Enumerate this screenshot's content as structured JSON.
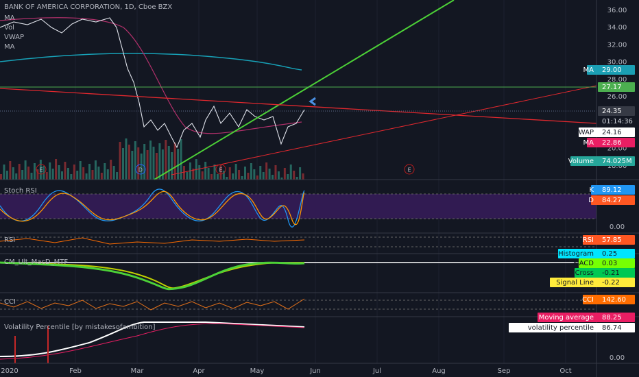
{
  "header": {
    "title": "BANK OF AMERICA CORPORATION, 1D, Cboe BZX",
    "indicators": [
      "MA",
      "Vol",
      "VWAP",
      "MA"
    ]
  },
  "price_axis": {
    "ticks": [
      "36.00",
      "34.00",
      "32.00",
      "30.00",
      "28.00",
      "26.00",
      "24.00",
      "22.00",
      "20.00",
      "18.00"
    ]
  },
  "price_badges": [
    {
      "label": "MA",
      "value": "29.00"
    },
    {
      "value": "27.17"
    },
    {
      "value": "24.35"
    },
    {
      "value": "01:14:36"
    },
    {
      "label": "VWAP",
      "value": "24.16"
    },
    {
      "label": "MA",
      "value": "22.86"
    },
    {
      "label": "Volume",
      "value": "74.025M"
    }
  ],
  "events": [
    "E",
    "D",
    "E",
    "E"
  ],
  "panels": [
    {
      "title": "Stoch RSI",
      "axis": [
        "0.00"
      ],
      "badges": [
        {
          "label": "K",
          "value": "89.12"
        },
        {
          "label": "D",
          "value": "84.27"
        }
      ]
    },
    {
      "title": "RSI",
      "badges": [
        {
          "label": "RSI",
          "value": "57.85"
        }
      ]
    },
    {
      "title": "CM_Ult_MacD_MTF",
      "badges": [
        {
          "label": "Histogram",
          "value": "0.25"
        },
        {
          "label": "MACD",
          "value": "0.03"
        },
        {
          "label": "Cross",
          "value": "-0.21"
        },
        {
          "label": "Signal Line",
          "value": "-0.22"
        }
      ]
    },
    {
      "title": "CCI",
      "badges": [
        {
          "label": "CCI",
          "value": "142.60"
        }
      ]
    },
    {
      "title": "Volatility Percentile [by mistakesofambition]",
      "axis": [
        "0.00"
      ],
      "badges": [
        {
          "label": "Moving average",
          "value": "88.25"
        },
        {
          "label": "volatility percentile",
          "value": "86.74"
        }
      ]
    }
  ],
  "time_axis": [
    "2020",
    "Feb",
    "Mar",
    "Apr",
    "May",
    "Jun",
    "Jul",
    "Aug",
    "Sep",
    "Oct"
  ]
}
